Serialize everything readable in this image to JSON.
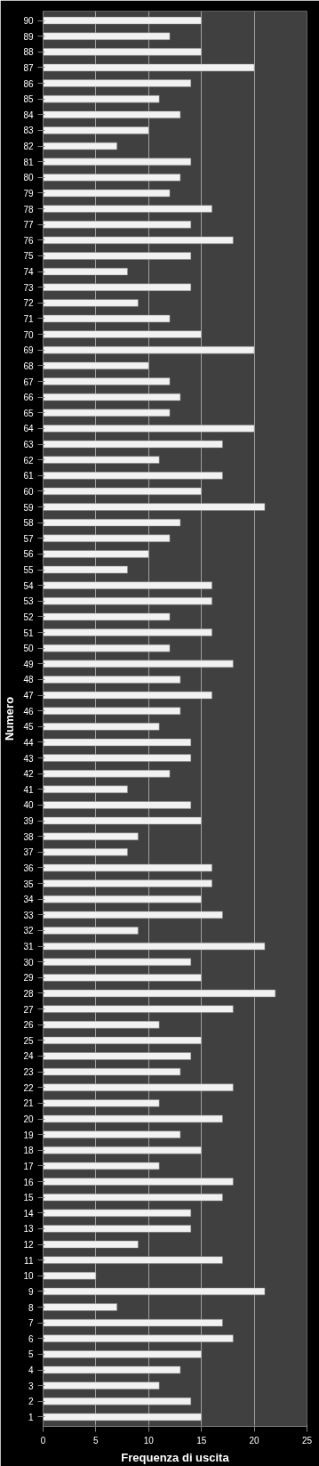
{
  "chart_data": {
    "type": "bar",
    "orientation": "horizontal",
    "xlabel": "Frequenza di uscita",
    "ylabel": "Numero",
    "categories": [
      "90",
      "89",
      "88",
      "87",
      "86",
      "85",
      "84",
      "83",
      "82",
      "81",
      "80",
      "79",
      "78",
      "77",
      "76",
      "75",
      "74",
      "73",
      "72",
      "71",
      "70",
      "69",
      "68",
      "67",
      "66",
      "65",
      "64",
      "63",
      "62",
      "61",
      "60",
      "59",
      "58",
      "57",
      "56",
      "55",
      "54",
      "53",
      "52",
      "51",
      "50",
      "49",
      "48",
      "47",
      "46",
      "45",
      "44",
      "43",
      "42",
      "41",
      "40",
      "39",
      "38",
      "37",
      "36",
      "35",
      "34",
      "33",
      "32",
      "31",
      "30",
      "29",
      "28",
      "27",
      "26",
      "25",
      "24",
      "23",
      "22",
      "21",
      "20",
      "19",
      "18",
      "17",
      "16",
      "15",
      "14",
      "13",
      "12",
      "11",
      "10",
      "9",
      "8",
      "7",
      "6",
      "5",
      "4",
      "3",
      "2",
      "1"
    ],
    "values": [
      15,
      12,
      15,
      20,
      14,
      11,
      13,
      10,
      7,
      14,
      13,
      12,
      16,
      14,
      18,
      14,
      8,
      14,
      9,
      12,
      15,
      20,
      10,
      12,
      13,
      12,
      20,
      17,
      11,
      17,
      15,
      21,
      13,
      12,
      10,
      8,
      16,
      16,
      12,
      16,
      12,
      18,
      13,
      16,
      13,
      11,
      14,
      14,
      12,
      8,
      14,
      15,
      9,
      8,
      16,
      16,
      15,
      17,
      9,
      21,
      14,
      15,
      22,
      18,
      11,
      15,
      14,
      13,
      18,
      11,
      17,
      13,
      15,
      11,
      18,
      17,
      14,
      14,
      9,
      17,
      5,
      21,
      7,
      17,
      18,
      15,
      13,
      11,
      14,
      15
    ],
    "color": "#f2f2f2",
    "xlim": [
      0,
      25
    ],
    "xticks": [
      0,
      5,
      10,
      15,
      20,
      25
    ],
    "grid": "x"
  }
}
